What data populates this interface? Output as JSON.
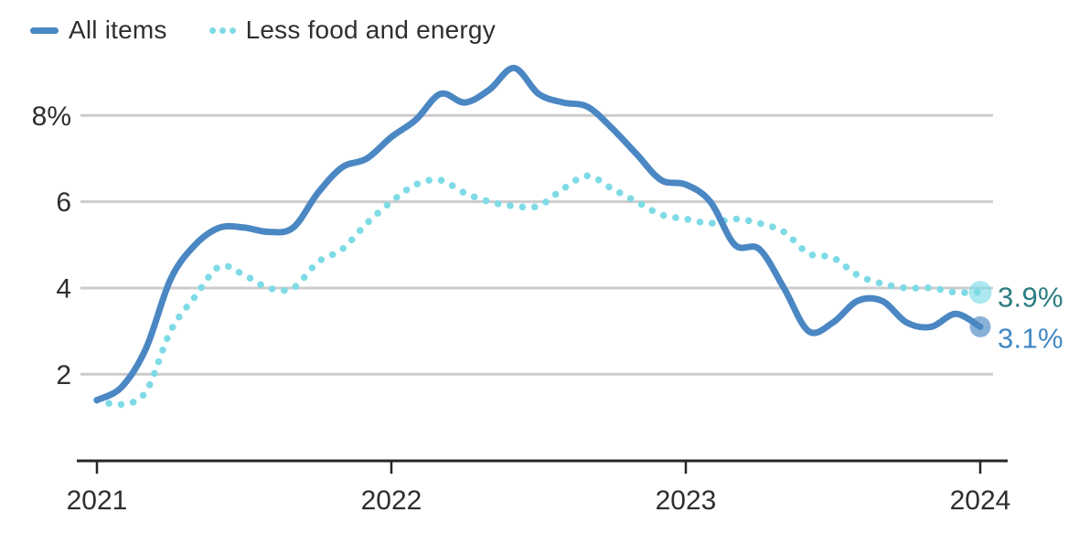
{
  "legend": {
    "items": [
      {
        "label": "All items",
        "color": "#4a87c3",
        "style": "solid"
      },
      {
        "label": "Less food and energy",
        "color": "#7edbe6",
        "style": "dotted"
      }
    ]
  },
  "chart_data": {
    "type": "line",
    "title": "",
    "xlabel": "",
    "ylabel": "",
    "grid": true,
    "legend_position": "top-left",
    "ylim": [
      0,
      9.4
    ],
    "x": [
      "2021-01",
      "2021-02",
      "2021-03",
      "2021-04",
      "2021-05",
      "2021-06",
      "2021-07",
      "2021-08",
      "2021-09",
      "2021-10",
      "2021-11",
      "2021-12",
      "2022-01",
      "2022-02",
      "2022-03",
      "2022-04",
      "2022-05",
      "2022-06",
      "2022-07",
      "2022-08",
      "2022-09",
      "2022-10",
      "2022-11",
      "2022-12",
      "2023-01",
      "2023-02",
      "2023-03",
      "2023-04",
      "2023-05",
      "2023-06",
      "2023-07",
      "2023-08",
      "2023-09",
      "2023-10",
      "2023-11",
      "2023-12",
      "2024-01"
    ],
    "x_tick_labels": [
      "2021",
      "2022",
      "2023",
      "2024"
    ],
    "y_tick_values": [
      8,
      6,
      4,
      2
    ],
    "y_tick_labels": [
      "8%",
      "6",
      "4",
      "2"
    ],
    "grid_color": "#cccccc",
    "axis_color": "#262626",
    "label_color": "#2e2e2e",
    "series": [
      {
        "name": "All items",
        "style": "solid",
        "color": "#4a87c3",
        "end_label": "3.1%",
        "end_label_color": "#4189c4",
        "values": [
          1.4,
          1.7,
          2.6,
          4.2,
          5.0,
          5.4,
          5.4,
          5.3,
          5.4,
          6.2,
          6.8,
          7.0,
          7.5,
          7.9,
          8.5,
          8.3,
          8.6,
          9.1,
          8.5,
          8.3,
          8.2,
          7.7,
          7.1,
          6.5,
          6.4,
          6.0,
          5.0,
          4.9,
          4.0,
          3.0,
          3.2,
          3.7,
          3.7,
          3.2,
          3.1,
          3.4,
          3.1
        ]
      },
      {
        "name": "Less food and energy",
        "style": "dotted",
        "color": "#7edbe6",
        "end_label": "3.9%",
        "end_label_color": "#2b7d81",
        "values": [
          1.4,
          1.3,
          1.6,
          3.0,
          3.8,
          4.5,
          4.3,
          4.0,
          4.0,
          4.6,
          4.9,
          5.5,
          6.0,
          6.4,
          6.5,
          6.2,
          6.0,
          5.9,
          5.9,
          6.3,
          6.6,
          6.3,
          6.0,
          5.7,
          5.6,
          5.5,
          5.6,
          5.5,
          5.3,
          4.8,
          4.7,
          4.3,
          4.1,
          4.0,
          4.0,
          3.9,
          3.9
        ]
      }
    ]
  }
}
